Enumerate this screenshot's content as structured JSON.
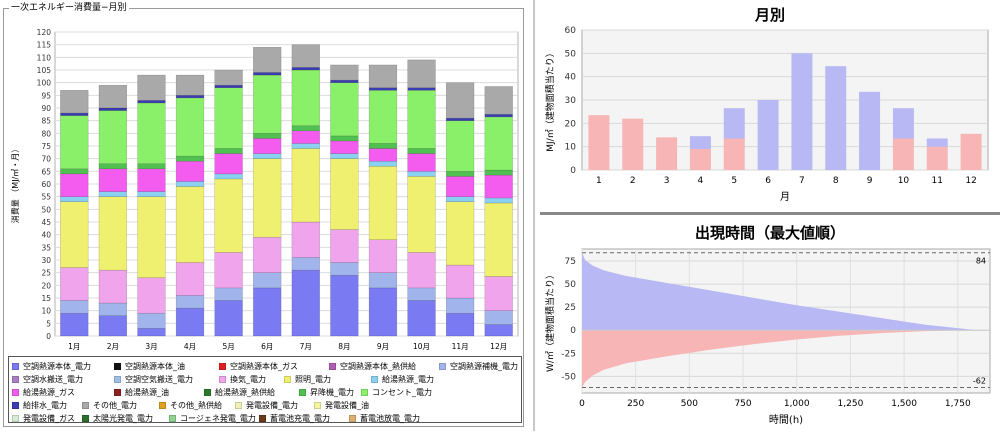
{
  "left_panel": {
    "frame_title": "一次エネルギー消費量−月別"
  },
  "chart_data": [
    {
      "type": "bar",
      "stacked": true,
      "title": "",
      "xlabel": "",
      "ylabel": "消費量 （MJ/㎡・月）",
      "ylim": [
        0,
        120
      ],
      "yticks": [
        0,
        5,
        10,
        15,
        20,
        25,
        30,
        35,
        40,
        45,
        50,
        55,
        60,
        65,
        70,
        75,
        80,
        85,
        90,
        95,
        100,
        105,
        110,
        115,
        120
      ],
      "grid": true,
      "categories": [
        "1月",
        "2月",
        "3月",
        "4月",
        "5月",
        "6月",
        "7月",
        "8月",
        "9月",
        "10月",
        "11月",
        "12月"
      ],
      "series": [
        {
          "name": "空調熱源本体_電力",
          "color": "#7a7af2",
          "values": [
            9,
            8,
            3,
            11,
            14,
            19,
            26,
            24,
            19,
            14,
            9,
            4.5
          ]
        },
        {
          "name": "空調熱源補機_電力",
          "color": "#a2b4ec",
          "values": [
            5,
            5,
            6,
            5,
            5,
            6,
            5,
            5,
            6,
            5,
            6,
            5.5
          ]
        },
        {
          "name": "換気_電力",
          "color": "#f0a4ec",
          "values": [
            13,
            13,
            14,
            13,
            14,
            14,
            14,
            13,
            13,
            14,
            13,
            13.5
          ]
        },
        {
          "name": "照明_電力",
          "color": "#f0f070",
          "values": [
            26,
            29,
            32,
            30,
            29,
            31,
            29,
            28,
            29,
            30,
            25,
            29
          ]
        },
        {
          "name": "給湯熱源_電力",
          "color": "#8ad0f0",
          "values": [
            2,
            2,
            2,
            2,
            2,
            2,
            2,
            2,
            2,
            2,
            2,
            2
          ]
        },
        {
          "name": "給湯熱源_ガス",
          "color": "#f45cf0",
          "values": [
            9,
            9,
            9,
            8,
            8,
            6,
            5,
            5,
            5,
            7,
            8,
            9
          ]
        },
        {
          "name": "昇降機_電力",
          "color": "#50c050",
          "values": [
            2,
            2,
            2,
            2,
            2,
            2,
            2,
            2,
            2,
            2,
            2,
            2
          ]
        },
        {
          "name": "コンセント_電力",
          "color": "#8af06a",
          "values": [
            21,
            21,
            24,
            23,
            24,
            23,
            22,
            21,
            21,
            23,
            20,
            21
          ]
        },
        {
          "name": "給排水_電力",
          "color": "#3c3cb4",
          "values": [
            1,
            1,
            1,
            1,
            1,
            1,
            1,
            1,
            1,
            1,
            1,
            1
          ]
        },
        {
          "name": "その他_電力",
          "color": "#a9a9a9",
          "values": [
            9,
            9,
            10,
            8,
            6,
            10,
            9,
            6,
            9,
            11,
            14,
            11
          ]
        }
      ]
    },
    {
      "type": "bar",
      "title": "月別",
      "xlabel": "月",
      "ylabel": "MJ/㎡（建物面積当たり）",
      "ylim": [
        0,
        60
      ],
      "yticks": [
        0,
        10,
        20,
        30,
        40,
        50,
        60
      ],
      "grid": true,
      "categories": [
        "1",
        "2",
        "3",
        "4",
        "5",
        "6",
        "7",
        "8",
        "9",
        "10",
        "11",
        "12"
      ],
      "series": [
        {
          "name": "",
          "color": "#f7b5b5",
          "values": [
            23.5,
            22,
            14,
            9,
            13.5,
            0,
            0,
            0,
            0,
            13.5,
            10,
            15.5
          ]
        },
        {
          "name": "",
          "color": "#b8b8f4",
          "values": [
            0,
            0,
            0,
            5.5,
            13,
            30,
            50,
            44.5,
            33.5,
            13,
            3.5,
            0
          ]
        }
      ]
    },
    {
      "type": "area",
      "title": "出現時間（最大値順）",
      "xlabel": "時間(h)",
      "ylabel": "W/㎡（建物面積当たり）",
      "xlim": [
        0,
        1900
      ],
      "ylim": [
        -68,
        88
      ],
      "xticks": [
        0,
        250,
        500,
        750,
        1000,
        1250,
        1500,
        1750
      ],
      "xtick_labels": [
        "0",
        "250",
        "500",
        "750",
        "1,000",
        "1,250",
        "1,500",
        "1,750"
      ],
      "yticks": [
        -50,
        -25,
        0,
        25,
        50,
        75
      ],
      "grid": true,
      "annotations": [
        "84",
        "-62"
      ],
      "series": [
        {
          "name": "",
          "color": "#b8b8f4",
          "x": [
            0,
            15,
            50,
            100,
            200,
            400,
            600,
            800,
            1000,
            1200,
            1400,
            1600,
            1760,
            1840
          ],
          "y": [
            84,
            76,
            70,
            65,
            59,
            51,
            43,
            35,
            27,
            20,
            13,
            6,
            2,
            0
          ]
        },
        {
          "name": "",
          "color": "#f7b5b5",
          "x": [
            0,
            15,
            50,
            100,
            200,
            400,
            600,
            800,
            1000,
            1200,
            1400,
            1600,
            1760,
            1840
          ],
          "y": [
            -62,
            -56,
            -49,
            -43,
            -36,
            -28,
            -21,
            -15,
            -10,
            -6,
            -3,
            -1,
            -0.3,
            0
          ]
        }
      ],
      "reference_lines": [
        84,
        -62
      ]
    }
  ],
  "legend_items": [
    {
      "label": "空調熱源本体_電力",
      "color": "#7a7af2"
    },
    {
      "label": "空調熱源本体_油",
      "color": "#111111"
    },
    {
      "label": "空調熱源本体_ガス",
      "color": "#e02020"
    },
    {
      "label": "空調熱源本体_熱供給",
      "color": "#b05eb0"
    },
    {
      "label": "空調熱源補機_電力",
      "color": "#a2b4ec"
    },
    {
      "label": "空調水搬送_電力",
      "color": "#a87ec8"
    },
    {
      "label": "空調空気搬送_電力",
      "color": "#9ec0e8"
    },
    {
      "label": "換気_電力",
      "color": "#f0a4ec"
    },
    {
      "label": "照明_電力",
      "color": "#f0f070"
    },
    {
      "label": "給湯熱源_電力",
      "color": "#8ad0f0"
    },
    {
      "label": "給湯熱源_ガス",
      "color": "#f45cf0"
    },
    {
      "label": "給湯熱源_油",
      "color": "#8a2020"
    },
    {
      "label": "給湯熱源_熱供給",
      "color": "#2c7a2c"
    },
    {
      "label": "昇降機_電力",
      "color": "#50c050"
    },
    {
      "label": "コンセント_電力",
      "color": "#8af06a"
    },
    {
      "label": "給排水_電力",
      "color": "#3c3cb4"
    },
    {
      "label": "その他_電力",
      "color": "#a9a9a9"
    },
    {
      "label": "その他_熱供給",
      "color": "#e0a020"
    },
    {
      "label": "発電設備_電力",
      "color": "#f0f0b4"
    },
    {
      "label": "発電設備_油",
      "color": "#f4f4a0"
    },
    {
      "label": "発電設備_ガス",
      "color": "#d4ecd4"
    },
    {
      "label": "太陽光発電_電力",
      "color": "#2c6e2c"
    },
    {
      "label": "コージェネ発電_電力",
      "color": "#90d090"
    },
    {
      "label": "蓄電池充電_電力",
      "color": "#6a3a1a"
    },
    {
      "label": "蓄電池放電_電力",
      "color": "#e0b070"
    }
  ]
}
